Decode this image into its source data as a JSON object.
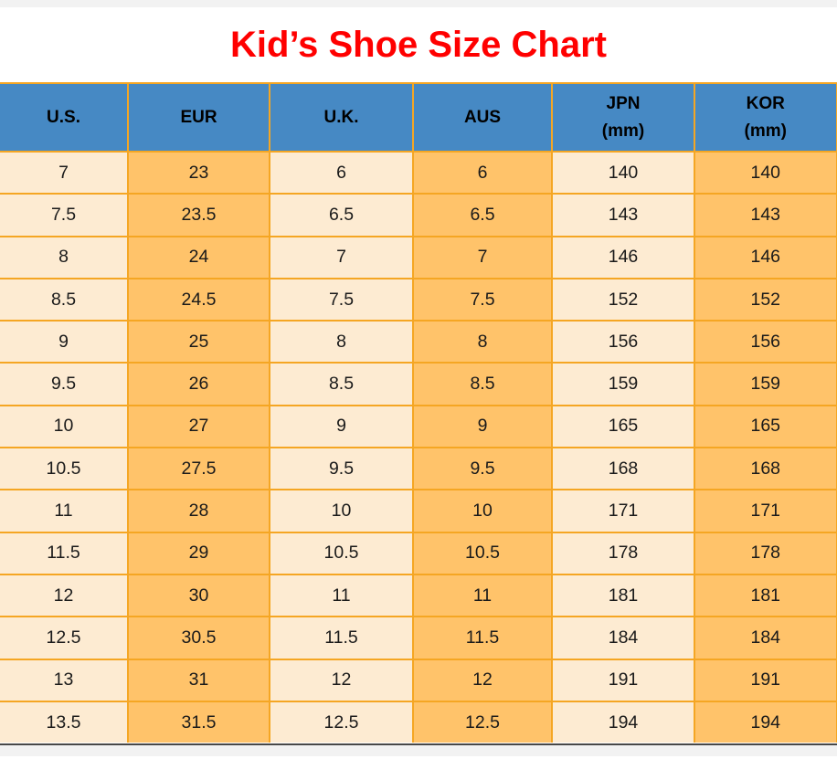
{
  "page": {
    "title": "Kid’s Shoe Size Chart"
  },
  "colors": {
    "title_red": "#FF0000",
    "header_blue": "#4689C4",
    "column_cream": "#FDEBD2",
    "column_orange": "#FFC36A",
    "grid_orange": "#F5A623",
    "strip_gray": "#F2F2F2",
    "bottom_line_dark": "#474747",
    "text_dark": "#1A1A1A"
  },
  "chart_data": {
    "type": "table",
    "title": "Kid’s Shoe Size Chart",
    "columns": [
      {
        "label": "U.S.",
        "sublabel": ""
      },
      {
        "label": "EUR",
        "sublabel": ""
      },
      {
        "label": "U.K.",
        "sublabel": ""
      },
      {
        "label": "AUS",
        "sublabel": ""
      },
      {
        "label": "JPN",
        "sublabel": "(mm)"
      },
      {
        "label": "KOR",
        "sublabel": "(mm)"
      }
    ],
    "rows": [
      [
        "7",
        "23",
        "6",
        "6",
        "140",
        "140"
      ],
      [
        "7.5",
        "23.5",
        "6.5",
        "6.5",
        "143",
        "143"
      ],
      [
        "8",
        "24",
        "7",
        "7",
        "146",
        "146"
      ],
      [
        "8.5",
        "24.5",
        "7.5",
        "7.5",
        "152",
        "152"
      ],
      [
        "9",
        "25",
        "8",
        "8",
        "156",
        "156"
      ],
      [
        "9.5",
        "26",
        "8.5",
        "8.5",
        "159",
        "159"
      ],
      [
        "10",
        "27",
        "9",
        "9",
        "165",
        "165"
      ],
      [
        "10.5",
        "27.5",
        "9.5",
        "9.5",
        "168",
        "168"
      ],
      [
        "11",
        "28",
        "10",
        "10",
        "171",
        "171"
      ],
      [
        "11.5",
        "29",
        "10.5",
        "10.5",
        "178",
        "178"
      ],
      [
        "12",
        "30",
        "11",
        "11",
        "181",
        "181"
      ],
      [
        "12.5",
        "30.5",
        "11.5",
        "11.5",
        "184",
        "184"
      ],
      [
        "13",
        "31",
        "12",
        "12",
        "191",
        "191"
      ],
      [
        "13.5",
        "31.5",
        "12.5",
        "12.5",
        "194",
        "194"
      ]
    ]
  }
}
